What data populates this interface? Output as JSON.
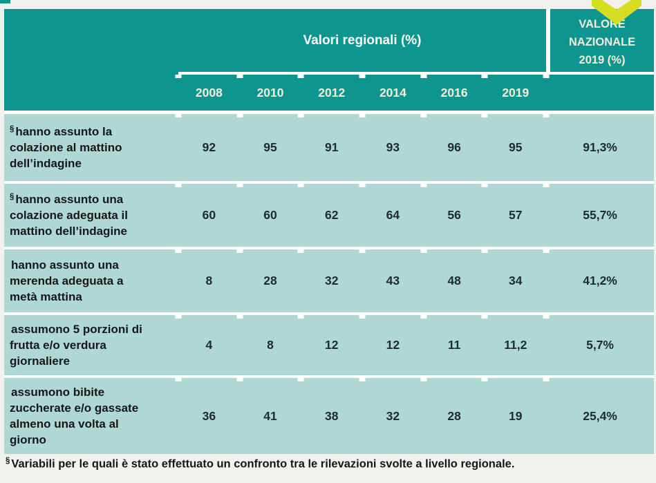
{
  "table": {
    "group_header": "Valori regionali (%)",
    "national_header": "VALORE\nNAZIONALE\n2019 (%)",
    "years": [
      "2008",
      "2010",
      "2012",
      "2014",
      "2016",
      "2019"
    ],
    "rows": [
      {
        "marker": "§",
        "label": "hanno assunto la\ncolazione al mattino\ndell’indagine",
        "values": [
          "92",
          "95",
          "91",
          "93",
          "96",
          "95"
        ],
        "national": "91,3%"
      },
      {
        "marker": "§",
        "label": "hanno assunto una\ncolazione adeguata il\nmattino dell’indagine",
        "values": [
          "60",
          "60",
          "62",
          "64",
          "56",
          "57"
        ],
        "national": "55,7%"
      },
      {
        "marker": "",
        "label": "hanno assunto una\nmerenda adeguata a\nmetà mattina",
        "values": [
          "8",
          "28",
          "32",
          "43",
          "48",
          "34"
        ],
        "national": "41,2%"
      },
      {
        "marker": "",
        "label": "assumono 5 porzioni di\nfrutta e/o verdura\ngiornaliere",
        "values": [
          "4",
          "8",
          "12",
          "12",
          "11",
          "11,2"
        ],
        "national": "5,7%"
      },
      {
        "marker": "",
        "label": "assumono bibite\nzuccherate e/o gassate\nalmeno una volta al\ngiorno",
        "values": [
          "36",
          "41",
          "38",
          "32",
          "28",
          "19"
        ],
        "national": "25,4%"
      }
    ]
  },
  "footnote": {
    "marker": "§",
    "text": "Variabili per le quali è stato effettuato un confronto tra le rilevazioni svolte a livello regionale."
  },
  "icons": {
    "down_arrow": "chevron-down-shape"
  },
  "colors": {
    "teal_header": "#0F958F",
    "teal_row": "#AFD8D4",
    "page_bg": "#F1F2EE",
    "arrow_yellow": "#D6DE24",
    "separator": "#FFFFFF",
    "header_text": "#FFFFFF",
    "year_text": "#F2EEDA",
    "body_text": "#161616",
    "num_text": "#1D2A30"
  }
}
